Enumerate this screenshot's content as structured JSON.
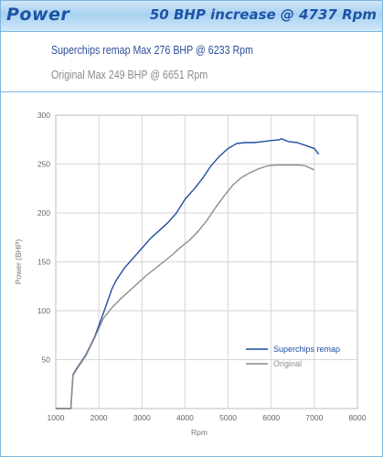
{
  "header": {
    "title": "Power",
    "increase": "50 BHP increase @ 4737 Rpm"
  },
  "summary": {
    "remap": "Superchips remap Max 276 BHP @ 6233 Rpm",
    "original": "Original Max 249 BHP @ 6651 Rpm"
  },
  "colors": {
    "remap": "#1e4fa0",
    "original": "#8c8c8c",
    "accent": "#1d54a8"
  },
  "chart_data": {
    "type": "line",
    "title": "",
    "xlabel": "Rpm",
    "ylabel": "Power (BHP)",
    "xlim": [
      1000,
      8000
    ],
    "ylim": [
      0,
      300
    ],
    "xticks": [
      "1000",
      "2000",
      "3000",
      "4000",
      "5000",
      "6000",
      "7000",
      "8000"
    ],
    "yticks": [
      "50",
      "100",
      "150",
      "200",
      "250",
      "300"
    ],
    "grid": true,
    "legend": "bottom-right",
    "series": [
      {
        "name": "Superchips remap",
        "x": [
          1000,
          1350,
          1400,
          1500,
          1700,
          1900,
          2100,
          2300,
          2400,
          2600,
          2800,
          3000,
          3200,
          3400,
          3600,
          3800,
          4000,
          4200,
          4400,
          4600,
          4800,
          5000,
          5200,
          5400,
          5600,
          5800,
          6000,
          6200,
          6233,
          6400,
          6600,
          6800,
          7000,
          7100
        ],
        "y": [
          0,
          0,
          35,
          42,
          55,
          73,
          97,
          122,
          131,
          144,
          154,
          164,
          174,
          182,
          190,
          200,
          214,
          224,
          235,
          248,
          258,
          266,
          271,
          272,
          272,
          273,
          274,
          275,
          276,
          273,
          272,
          269,
          266,
          260
        ]
      },
      {
        "name": "Original",
        "x": [
          1000,
          1350,
          1400,
          1500,
          1700,
          1900,
          2100,
          2300,
          2500,
          2700,
          2900,
          3100,
          3300,
          3500,
          3700,
          3900,
          4100,
          4300,
          4500,
          4700,
          4900,
          5100,
          5300,
          5500,
          5700,
          5900,
          6100,
          6300,
          6500,
          6651,
          6800,
          7000
        ],
        "y": [
          0,
          0,
          34,
          41,
          54,
          72,
          92,
          103,
          112,
          120,
          128,
          136,
          143,
          150,
          157,
          165,
          172,
          181,
          192,
          205,
          217,
          228,
          236,
          241,
          245,
          248,
          249,
          249,
          249,
          249,
          248,
          244
        ]
      }
    ]
  }
}
